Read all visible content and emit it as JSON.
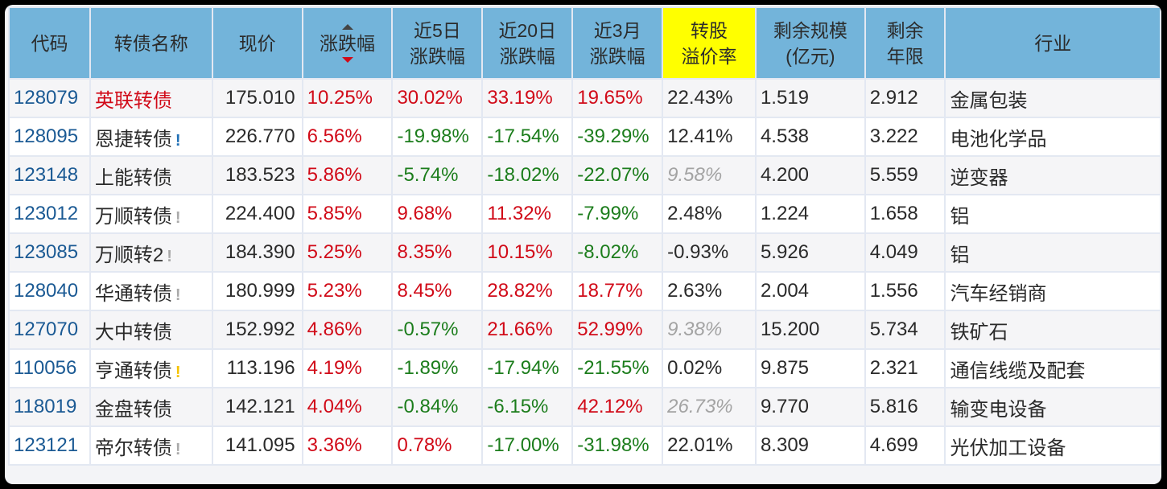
{
  "header": {
    "code": "代码",
    "name": "转债名称",
    "price": "现价",
    "change": "涨跌幅",
    "change5d_1": "近5日",
    "change5d_2": "涨跌幅",
    "change20d_1": "近20日",
    "change20d_2": "涨跌幅",
    "change3m_1": "近3月",
    "change3m_2": "涨跌幅",
    "premium_1": "转股",
    "premium_2": "溢价率",
    "size_1": "剩余规模",
    "size_2": "(亿元)",
    "years_1": "剩余",
    "years_2": "年限",
    "industry": "行业"
  },
  "sort": {
    "column": "涨跌幅",
    "direction": "desc"
  },
  "colors": {
    "header_bg": "#73b4da",
    "highlight_header_bg": "#ffff00",
    "up": "#d10a18",
    "down": "#1c7d1c",
    "code": "#1b5a94"
  },
  "rows": [
    {
      "code": "128079",
      "name": "英联转债",
      "flag": "",
      "price": "175.010",
      "change": "10.25%",
      "c5": "30.02%",
      "c20": "33.19%",
      "c3m": "19.65%",
      "premium": "22.43%",
      "size": "1.519",
      "years": "2.912",
      "industry": "金属包装"
    },
    {
      "code": "128095",
      "name": "恩捷转债",
      "flag": "!",
      "price": "226.770",
      "change": "6.56%",
      "c5": "-19.98%",
      "c20": "-17.54%",
      "c3m": "-39.29%",
      "premium": "12.41%",
      "size": "4.538",
      "years": "3.222",
      "industry": "电池化学品"
    },
    {
      "code": "123148",
      "name": "上能转债",
      "flag": "",
      "price": "183.523",
      "change": "5.86%",
      "c5": "-5.74%",
      "c20": "-18.02%",
      "c3m": "-22.07%",
      "premium": "9.58%",
      "size": "4.200",
      "years": "5.559",
      "industry": "逆变器"
    },
    {
      "code": "123012",
      "name": "万顺转债",
      "flag": "!",
      "price": "224.400",
      "change": "5.85%",
      "c5": "9.68%",
      "c20": "11.32%",
      "c3m": "-7.99%",
      "premium": "2.48%",
      "size": "1.224",
      "years": "1.658",
      "industry": "铝"
    },
    {
      "code": "123085",
      "name": "万顺转2",
      "flag": "!",
      "price": "184.390",
      "change": "5.25%",
      "c5": "8.35%",
      "c20": "10.15%",
      "c3m": "-8.02%",
      "premium": "-0.93%",
      "size": "5.926",
      "years": "4.049",
      "industry": "铝"
    },
    {
      "code": "128040",
      "name": "华通转债",
      "flag": "!",
      "price": "180.999",
      "change": "5.23%",
      "c5": "8.45%",
      "c20": "28.82%",
      "c3m": "18.77%",
      "premium": "2.63%",
      "size": "2.004",
      "years": "1.556",
      "industry": "汽车经销商"
    },
    {
      "code": "127070",
      "name": "大中转债",
      "flag": "",
      "price": "152.992",
      "change": "4.86%",
      "c5": "-0.57%",
      "c20": "21.66%",
      "c3m": "52.99%",
      "premium": "9.38%",
      "size": "15.200",
      "years": "5.734",
      "industry": "铁矿石"
    },
    {
      "code": "110056",
      "name": "亨通转债",
      "flag": "!",
      "price": "113.196",
      "change": "4.19%",
      "c5": "-1.89%",
      "c20": "-17.94%",
      "c3m": "-21.55%",
      "premium": "0.02%",
      "size": "9.875",
      "years": "2.321",
      "industry": "通信线缆及配套"
    },
    {
      "code": "118019",
      "name": "金盘转债",
      "flag": "",
      "price": "142.121",
      "change": "4.04%",
      "c5": "-0.84%",
      "c20": "-6.15%",
      "c3m": "42.12%",
      "premium": "26.73%",
      "size": "9.770",
      "years": "5.816",
      "industry": "输变电设备"
    },
    {
      "code": "123121",
      "name": "帝尔转债",
      "flag": "!",
      "price": "141.095",
      "change": "3.36%",
      "c5": "0.78%",
      "c20": "-17.00%",
      "c3m": "-31.98%",
      "premium": "22.01%",
      "size": "8.309",
      "years": "4.699",
      "industry": "光伏加工设备"
    }
  ]
}
